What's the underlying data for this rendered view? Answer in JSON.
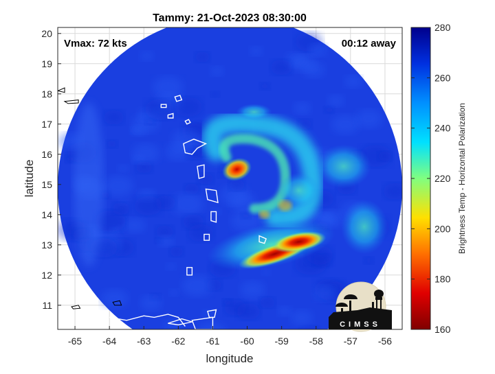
{
  "chart_data": {
    "type": "heatmap",
    "title": "Tammy: 21-Oct-2023 08:30:00",
    "xlabel": "longitude",
    "ylabel": "latitude",
    "xlim": [
      -65.5,
      -55.5
    ],
    "ylim": [
      10.2,
      20.2
    ],
    "x_ticks": [
      -65,
      -64,
      -63,
      -62,
      -61,
      -60,
      -59,
      -58,
      -57,
      -56
    ],
    "y_ticks": [
      11,
      12,
      13,
      14,
      15,
      16,
      17,
      18,
      19,
      20
    ],
    "grid": true,
    "annotations": {
      "left": "Vmax: 72 kts",
      "right": "00:12 away"
    },
    "colorbar": {
      "label": "Brightness Temp - Horizontal Polarization",
      "range": [
        160,
        280
      ],
      "ticks": [
        160,
        180,
        200,
        220,
        240,
        260,
        280
      ],
      "colormap": "jet-dark"
    },
    "swath": {
      "center": [
        -60.5,
        14.9
      ],
      "radius_deg": 5.0,
      "background_value": 262
    },
    "features": [
      {
        "name": "outer-band-spiral",
        "lon": -59.2,
        "lat": 14.6,
        "value": 240
      },
      {
        "name": "inner-core-north",
        "lon": -60.3,
        "lat": 15.5,
        "value": 195
      },
      {
        "name": "rain-band-south",
        "lon": -59.2,
        "lat": 12.7,
        "value": 178
      },
      {
        "name": "rain-band-east",
        "lon": -58.5,
        "lat": 13.1,
        "value": 185
      }
    ]
  },
  "logo": {
    "text": "CIMSS"
  },
  "colors": {
    "swath_base": "#1a3fe0",
    "background": "#ffffff",
    "grid": "#d9d9d9",
    "coast": "#ffffff"
  }
}
